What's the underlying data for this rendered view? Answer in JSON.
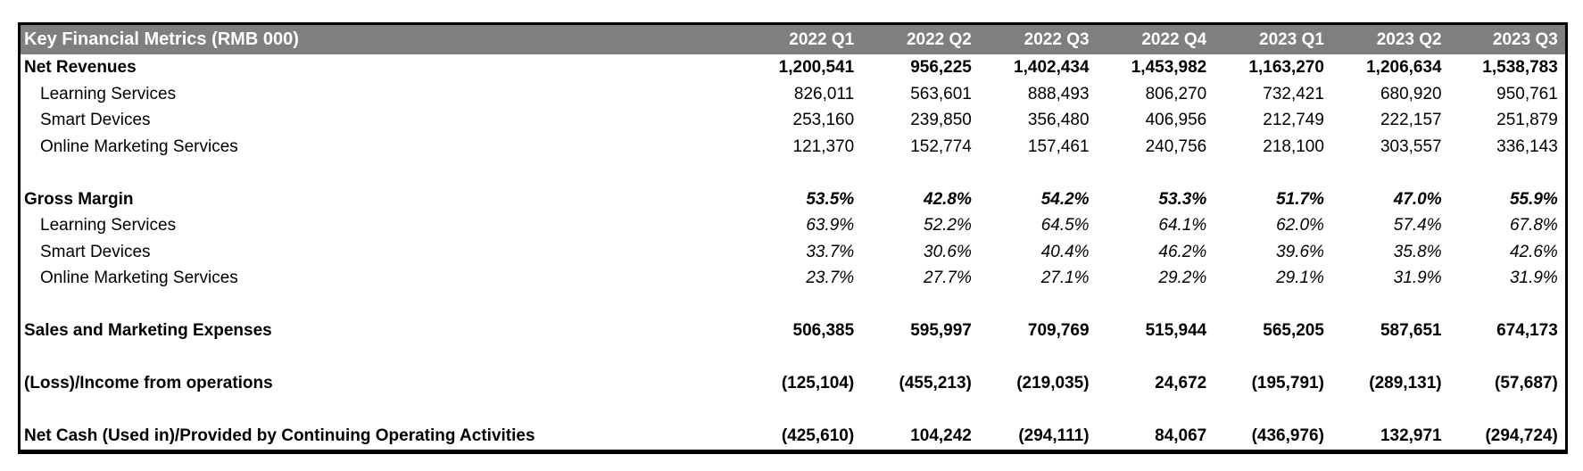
{
  "table": {
    "title": "Key Financial Metrics (RMB 000)",
    "columns": [
      "2022 Q1",
      "2022 Q2",
      "2022 Q3",
      "2022 Q4",
      "2023 Q1",
      "2023 Q2",
      "2023 Q3"
    ],
    "rows": [
      {
        "label": "Net Revenues",
        "style": "total",
        "values": [
          "1,200,541",
          "956,225",
          "1,402,434",
          "1,453,982",
          "1,163,270",
          "1,206,634",
          "1,538,783"
        ]
      },
      {
        "label": "Learning Services",
        "style": "sub",
        "values": [
          "826,011",
          "563,601",
          "888,493",
          "806,270",
          "732,421",
          "680,920",
          "950,761"
        ]
      },
      {
        "label": "Smart Devices",
        "style": "sub",
        "values": [
          "253,160",
          "239,850",
          "356,480",
          "406,956",
          "212,749",
          "222,157",
          "251,879"
        ]
      },
      {
        "label": "Online Marketing Services",
        "style": "sub",
        "values": [
          "121,370",
          "152,774",
          "157,461",
          "240,756",
          "218,100",
          "303,557",
          "336,143"
        ]
      },
      {
        "label": "",
        "style": "blank",
        "values": [
          "",
          "",
          "",
          "",
          "",
          "",
          ""
        ]
      },
      {
        "label": "Gross Margin",
        "style": "total-pct",
        "values": [
          "53.5%",
          "42.8%",
          "54.2%",
          "53.3%",
          "51.7%",
          "47.0%",
          "55.9%"
        ]
      },
      {
        "label": "Learning Services",
        "style": "sub-pct",
        "values": [
          "63.9%",
          "52.2%",
          "64.5%",
          "64.1%",
          "62.0%",
          "57.4%",
          "67.8%"
        ]
      },
      {
        "label": "Smart Devices",
        "style": "sub-pct",
        "values": [
          "33.7%",
          "30.6%",
          "40.4%",
          "46.2%",
          "39.6%",
          "35.8%",
          "42.6%"
        ]
      },
      {
        "label": "Online Marketing Services",
        "style": "sub-pct",
        "values": [
          "23.7%",
          "27.7%",
          "27.1%",
          "29.2%",
          "29.1%",
          "31.9%",
          "31.9%"
        ]
      },
      {
        "label": "",
        "style": "blank",
        "values": [
          "",
          "",
          "",
          "",
          "",
          "",
          ""
        ]
      },
      {
        "label": "Sales and Marketing Expenses",
        "style": "total",
        "values": [
          "506,385",
          "595,997",
          "709,769",
          "515,944",
          "565,205",
          "587,651",
          "674,173"
        ]
      },
      {
        "label": "",
        "style": "blank",
        "values": [
          "",
          "",
          "",
          "",
          "",
          "",
          ""
        ]
      },
      {
        "label": "(Loss)/Income from operations",
        "style": "total",
        "values": [
          "(125,104)",
          "(455,213)",
          "(219,035)",
          "24,672",
          "(195,791)",
          "(289,131)",
          "(57,687)"
        ]
      },
      {
        "label": "",
        "style": "blank",
        "values": [
          "",
          "",
          "",
          "",
          "",
          "",
          ""
        ]
      },
      {
        "label": "Net Cash (Used in)/Provided by Continuing Operating Activities",
        "style": "total",
        "values": [
          "(425,610)",
          "104,242",
          "(294,111)",
          "84,067",
          "(436,976)",
          "132,971",
          "(294,724)"
        ]
      }
    ],
    "colors": {
      "header_bg": "#7f7f7f",
      "header_text": "#ffffff",
      "border": "#000000",
      "text": "#000000",
      "background": "#ffffff"
    }
  }
}
